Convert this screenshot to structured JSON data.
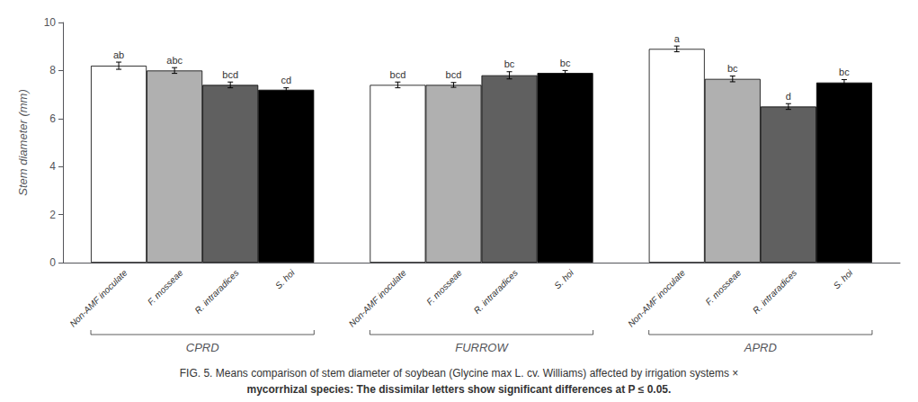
{
  "chart_data": {
    "type": "bar",
    "ylabel": "Stem diameter (mm)",
    "categories": [
      "CPRD",
      "FURROW",
      "APRD"
    ],
    "series": [
      {
        "name": "Non-AMF inoculate",
        "color": "white",
        "values": [
          8.2,
          7.4,
          8.9
        ],
        "errors": [
          0.15,
          0.12,
          0.12
        ],
        "letters": [
          "ab",
          "bcd",
          "a"
        ]
      },
      {
        "name": "F. mosseae",
        "color": "#b0b0b0",
        "values": [
          8.0,
          7.4,
          7.65
        ],
        "errors": [
          0.12,
          0.1,
          0.12
        ],
        "letters": [
          "abc",
          "bcd",
          "bc"
        ]
      },
      {
        "name": "R. intraradices",
        "color": "#606060",
        "values": [
          7.4,
          7.8,
          6.5
        ],
        "errors": [
          0.12,
          0.15,
          0.12
        ],
        "letters": [
          "bcd",
          "bc",
          "d"
        ]
      },
      {
        "name": "S. hoi",
        "color": "black",
        "values": [
          7.2,
          7.9,
          7.5
        ],
        "errors": [
          0.08,
          0.1,
          0.12
        ],
        "letters": [
          "cd",
          "bc",
          "bc"
        ]
      }
    ],
    "ylim": [
      0,
      10
    ],
    "yticks": [
      0,
      2,
      4,
      6,
      8,
      10
    ],
    "grid": false,
    "annotations": [
      "FIG. 5. Means comparison of stem diameter of soybean (Glycine max L. cv. Williams) affected by irrigation systems ×",
      "mycorrhizal species: The dissimilar letters show significant differences at P ≤ 0.05."
    ]
  }
}
